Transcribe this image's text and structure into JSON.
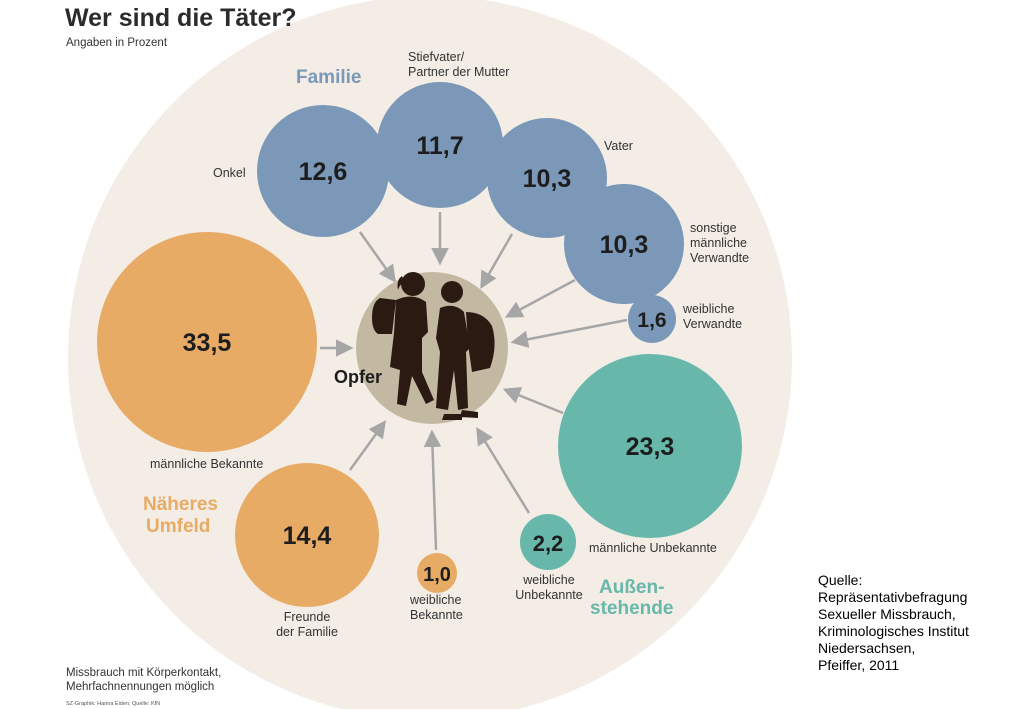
{
  "title": "Wer sind die Täter?",
  "subtitle": "Angaben in Prozent",
  "center_label": "Opfer",
  "groups": {
    "familie": "Familie",
    "naeheres_umfeld_1": "Näheres",
    "naeheres_umfeld_2": "Umfeld",
    "aussenstehende_1": "Außen-",
    "aussenstehende_2": "stehende"
  },
  "colors": {
    "familie": "#7b98b8",
    "naeheres_umfeld": "#e8ab66",
    "aussenstehende": "#68b7ab",
    "background_circle": "#f3ede5",
    "center_circle": "#c3b8a2",
    "arrow": "#a6a6a6"
  },
  "chart_data": {
    "type": "bubble",
    "title": "Wer sind die Täter?",
    "subtitle": "Angaben in Prozent",
    "unit": "%",
    "items": [
      {
        "label": "Onkel",
        "value": "12,6",
        "group": "Familie"
      },
      {
        "label": "Stiefvater/ Partner der Mutter",
        "value": "11,7",
        "group": "Familie"
      },
      {
        "label": "Vater",
        "value": "10,3",
        "group": "Familie"
      },
      {
        "label": "sonstige männliche Verwandte",
        "value": "10,3",
        "group": "Familie"
      },
      {
        "label": "weibliche Verwandte",
        "value": "1,6",
        "group": "Familie"
      },
      {
        "label": "männliche Bekannte",
        "value": "33,5",
        "group": "Näheres Umfeld"
      },
      {
        "label": "Freunde der Familie",
        "value": "14,4",
        "group": "Näheres Umfeld"
      },
      {
        "label": "weibliche Bekannte",
        "value": "1,0",
        "group": "Näheres Umfeld"
      },
      {
        "label": "männliche Unbekannte",
        "value": "23,3",
        "group": "Außenstehende"
      },
      {
        "label": "weibliche Unbekannte",
        "value": "2,2",
        "group": "Außenstehende"
      }
    ]
  },
  "labels": {
    "onkel": [
      "Onkel"
    ],
    "stiefvater": [
      "Stiefvater/",
      "Partner der Mutter"
    ],
    "vater": [
      "Vater"
    ],
    "sonstige": [
      "sonstige",
      "männliche",
      "Verwandte"
    ],
    "weibl_verwandte": [
      "weibliche",
      "Verwandte"
    ],
    "maennl_bekannte": [
      "männliche Bekannte"
    ],
    "freunde": [
      "Freunde",
      "der Familie"
    ],
    "weibl_bekannte": [
      "weibliche",
      "Bekannte"
    ],
    "maennl_unbekannte": [
      "männliche Unbekannte"
    ],
    "weibl_unbekannte": [
      "weibliche",
      "Unbekannte"
    ]
  },
  "footnote": [
    "Missbrauch mit Körperkontakt,",
    "Mehrfachnennungen möglich"
  ],
  "credit": "SZ-Graphik: Hanna Eiden; Quelle: KfN",
  "source": [
    "Quelle:",
    "Repräsentativbefragung",
    "Sexueller Missbrauch,",
    "Kriminologisches Institut",
    "Niedersachsen,",
    "Pfeiffer, 2011"
  ]
}
